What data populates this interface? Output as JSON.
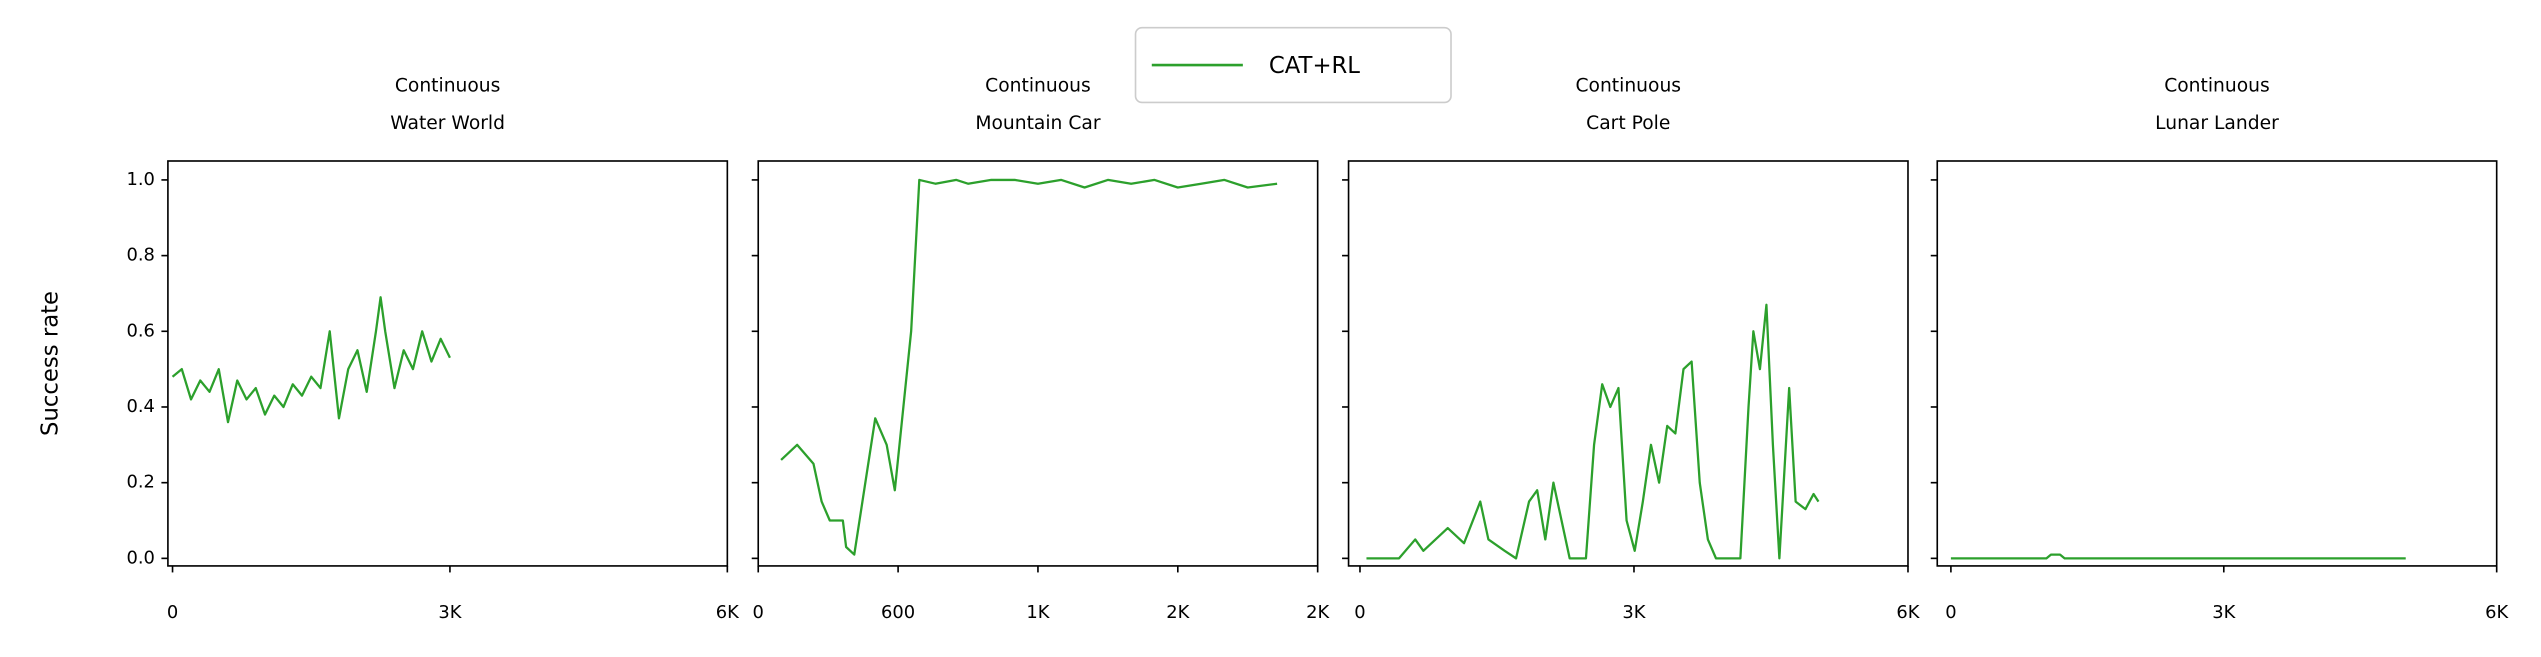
{
  "chart_data": [
    {
      "type": "line",
      "title": [
        "Continuous",
        "Water World"
      ],
      "ylabel": "Success rate",
      "x": [
        0,
        100,
        200,
        300,
        400,
        500,
        600,
        700,
        800,
        900,
        1000,
        1100,
        1200,
        1300,
        1400,
        1500,
        1600,
        1700,
        1800,
        1900,
        2000,
        2100,
        2200,
        2250,
        2300,
        2400,
        2500,
        2600,
        2700,
        2800,
        2900,
        3000
      ],
      "series": [
        {
          "name": "CAT+RL",
          "color": "#2ca02c",
          "values": [
            0.48,
            0.5,
            0.42,
            0.47,
            0.44,
            0.5,
            0.36,
            0.47,
            0.42,
            0.45,
            0.38,
            0.43,
            0.4,
            0.46,
            0.43,
            0.48,
            0.45,
            0.6,
            0.37,
            0.5,
            0.55,
            0.44,
            0.6,
            0.69,
            0.6,
            0.45,
            0.55,
            0.5,
            0.6,
            0.52,
            0.58,
            0.53
          ]
        }
      ],
      "xlim": [
        -50,
        6000
      ],
      "xticks": [
        0,
        {
          "value": 3000,
          "label": "3K"
        },
        {
          "value": 6000,
          "label": "6K"
        }
      ],
      "ylim": [
        -0.02,
        1.05
      ],
      "yticks": [
        {
          "value": 0,
          "label": "0.0"
        },
        0.2,
        0.4,
        0.6,
        0.8,
        {
          "value": 1,
          "label": "1.0"
        }
      ]
    },
    {
      "type": "line",
      "title": [
        "Continuous",
        "Mountain Car"
      ],
      "x": [
        98,
        167,
        237,
        272,
        307,
        363,
        377,
        412,
        447,
        502,
        551,
        586,
        656,
        691,
        760,
        850,
        900,
        1000,
        1100,
        1200,
        1300,
        1400,
        1500,
        1600,
        1700,
        1800,
        1900,
        2000,
        2100,
        2226
      ],
      "series": [
        {
          "name": "CAT+RL",
          "color": "#2ca02c",
          "values": [
            0.26,
            0.3,
            0.25,
            0.15,
            0.1,
            0.1,
            0.03,
            0.01,
            0.15,
            0.37,
            0.3,
            0.18,
            0.6,
            1.0,
            0.99,
            1.0,
            0.99,
            1.0,
            1.0,
            0.99,
            1.0,
            0.98,
            1.0,
            0.99,
            1.0,
            0.98,
            0.99,
            1.0,
            0.98,
            0.99
          ]
        }
      ],
      "xlim": [
        0,
        2400
      ],
      "xticks": [
        0,
        600,
        {
          "value": 1200,
          "label": "1K"
        },
        {
          "value": 1800,
          "label": "2K"
        },
        {
          "value": 2400,
          "label": "2K"
        }
      ],
      "ylim": [
        -0.02,
        1.05
      ],
      "yticks": [
        0,
        0.2,
        0.4,
        0.6,
        0.8,
        1
      ]
    },
    {
      "type": "line",
      "title": [
        "Continuous",
        "Cart Pole"
      ],
      "x": [
        71,
        427,
        605,
        694,
        961,
        1139,
        1317,
        1406,
        1584,
        1709,
        1851,
        1940,
        2029,
        2118,
        2207,
        2296,
        2474,
        2563,
        2652,
        2741,
        2830,
        2919,
        3008,
        3097,
        3186,
        3275,
        3364,
        3453,
        3542,
        3631,
        3720,
        3809,
        3898,
        4165,
        4254,
        4307,
        4379,
        4450,
        4521,
        4592,
        4699,
        4770,
        4877,
        4966,
        5020
      ],
      "series": [
        {
          "name": "CAT+RL",
          "color": "#2ca02c",
          "values": [
            0,
            0,
            0.05,
            0.02,
            0.08,
            0.04,
            0.15,
            0.05,
            0.02,
            0,
            0.15,
            0.18,
            0.05,
            0.2,
            0.1,
            0,
            0,
            0.3,
            0.46,
            0.4,
            0.45,
            0.1,
            0.02,
            0.15,
            0.3,
            0.2,
            0.35,
            0.33,
            0.5,
            0.52,
            0.2,
            0.05,
            0,
            0,
            0.4,
            0.6,
            0.5,
            0.67,
            0.3,
            0,
            0.45,
            0.15,
            0.13,
            0.17,
            0.15
          ]
        }
      ],
      "xlim": [
        -125,
        6000
      ],
      "xticks": [
        0,
        {
          "value": 3000,
          "label": "3K"
        },
        {
          "value": 6000,
          "label": "6K"
        }
      ],
      "ylim": [
        -0.02,
        1.05
      ],
      "yticks": [
        0,
        0.2,
        0.4,
        0.6,
        0.8,
        1
      ]
    },
    {
      "type": "line",
      "title": [
        "Continuous",
        "Lunar Lander"
      ],
      "x": [
        0,
        1050,
        1100,
        1200,
        1250,
        5000
      ],
      "series": [
        {
          "name": "CAT+RL",
          "color": "#2ca02c",
          "values": [
            0,
            0,
            0.01,
            0.01,
            0,
            0
          ]
        }
      ],
      "xlim": [
        -150,
        6000
      ],
      "xticks": [
        0,
        {
          "value": 3000,
          "label": "3K"
        },
        {
          "value": 6000,
          "label": "6K"
        }
      ],
      "ylim": [
        -0.02,
        1.05
      ],
      "yticks": [
        0,
        0.2,
        0.4,
        0.6,
        0.8,
        1
      ]
    }
  ]
}
